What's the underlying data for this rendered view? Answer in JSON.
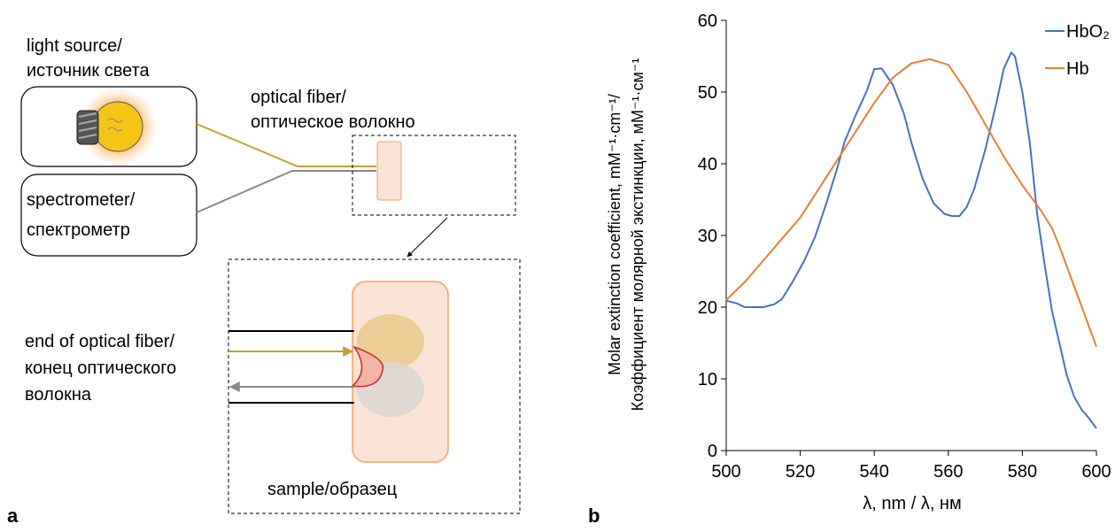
{
  "diagram": {
    "light_source": [
      "light source/",
      "источник света"
    ],
    "spectrometer": [
      "spectrometer/",
      "спектрометр"
    ],
    "optical_fiber": [
      "optical fiber/",
      "оптическое волокно"
    ],
    "fiber_end": [
      "end of optical fiber/",
      "конец оптического",
      "волокна"
    ],
    "sample": "sample/образец",
    "panel_labels": [
      "a",
      "b"
    ]
  },
  "chart_data": {
    "type": "line",
    "x_label": "λ, nm / λ, нм",
    "y_label": [
      "Molar extinction coefficient, mM⁻¹·cm⁻¹/",
      "Коэффициент молярной экстинкции, мМ⁻¹·см⁻¹"
    ],
    "xlim": [
      500,
      600
    ],
    "xticks": [
      500,
      520,
      540,
      560,
      580,
      600
    ],
    "ylim": [
      0,
      60
    ],
    "yticks": [
      0,
      10,
      20,
      30,
      40,
      50,
      60
    ],
    "grid": false,
    "legend": "upper right",
    "series": [
      {
        "name": "HbO₂",
        "color": "#4472c4",
        "x": [
          500,
          503,
          505,
          510,
          513,
          515,
          518,
          521,
          524,
          527,
          530,
          532,
          535,
          538,
          540,
          542,
          545,
          548,
          550,
          553,
          556,
          559,
          561,
          563,
          565,
          567,
          570,
          573,
          575,
          577,
          578,
          580,
          582,
          584,
          586,
          588,
          590,
          592,
          594,
          596,
          598,
          600
        ],
        "values": [
          20.9,
          20.5,
          20.0,
          20.0,
          20.4,
          21.1,
          23.6,
          26.4,
          29.8,
          34.4,
          39.4,
          43.1,
          46.8,
          50.2,
          53.2,
          53.3,
          51.0,
          47.0,
          43.0,
          38.0,
          34.5,
          33.0,
          32.7,
          32.7,
          34.0,
          36.5,
          42.0,
          48.5,
          53.3,
          55.5,
          55.0,
          50.0,
          43.0,
          33.0,
          26.0,
          19.5,
          15.0,
          10.5,
          7.5,
          5.7,
          4.5,
          3.1
        ]
      },
      {
        "name": "Hb",
        "color": "#ed7d31",
        "x": [
          500,
          505,
          510,
          515,
          520,
          525,
          530,
          535,
          540,
          545,
          550,
          555,
          560,
          565,
          570,
          575,
          580,
          585,
          588,
          590,
          595,
          600
        ],
        "values": [
          21.0,
          23.5,
          26.5,
          29.5,
          32.5,
          36.5,
          40.5,
          44.5,
          48.5,
          52.0,
          54.0,
          54.6,
          53.8,
          50.0,
          45.5,
          41.0,
          37.0,
          33.5,
          31.0,
          28.5,
          21.5,
          14.5
        ]
      }
    ]
  }
}
